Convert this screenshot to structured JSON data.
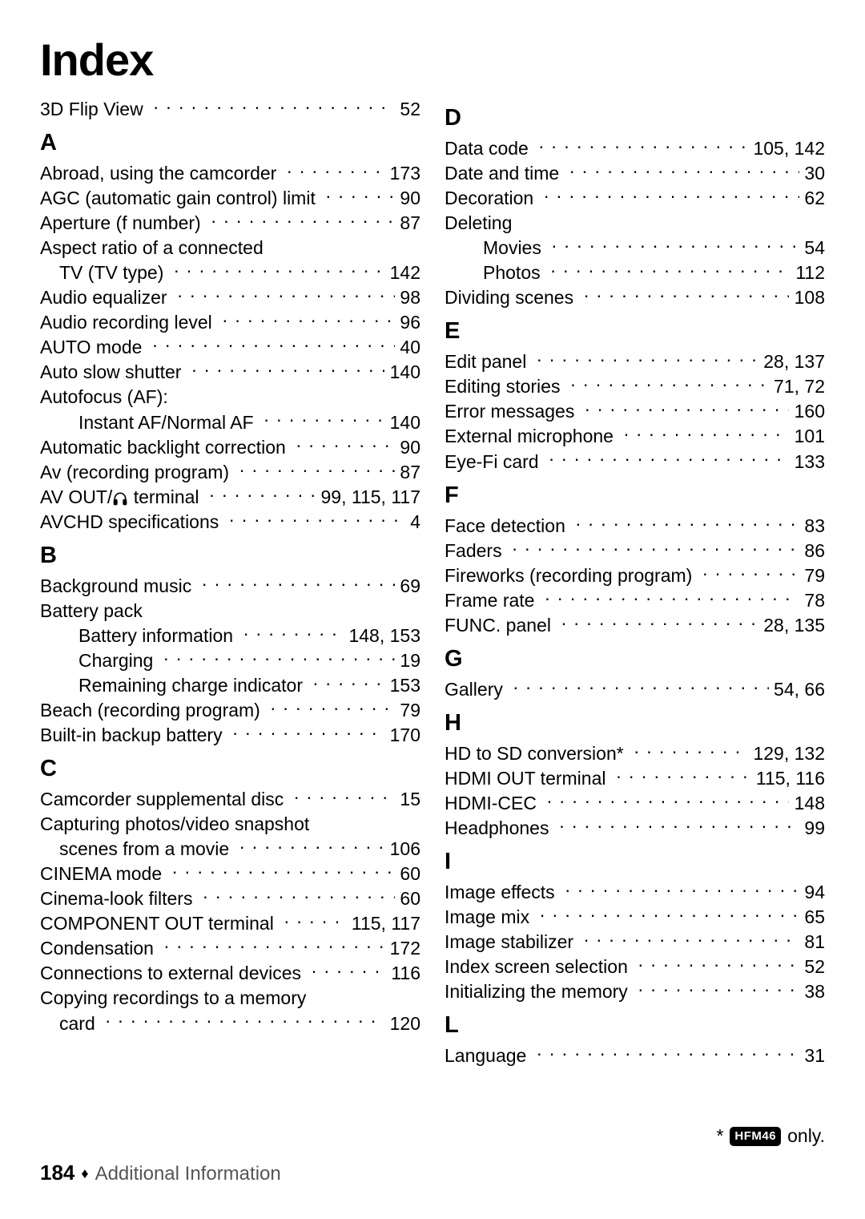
{
  "title": "Index",
  "footer": {
    "page_num": "184",
    "section": "Additional Information",
    "diamond": "♦"
  },
  "footnote": {
    "star": "*",
    "badge": "HFM46",
    "suffix": " only."
  },
  "pre_entries": [
    {
      "label": "3D Flip View",
      "page": "52"
    }
  ],
  "left": [
    {
      "letter": "A",
      "entries": [
        {
          "label": "Abroad, using the camcorder",
          "page": "173"
        },
        {
          "label": "AGC (automatic gain control) limit",
          "page": "90"
        },
        {
          "label": "Aperture (f number)",
          "page": "87"
        },
        {
          "label": "Aspect ratio of a connected",
          "nopage": true
        },
        {
          "label": "TV (TV type)",
          "page": "142",
          "indent": 1
        },
        {
          "label": "Audio equalizer",
          "page": "98"
        },
        {
          "label": "Audio recording level",
          "page": "96"
        },
        {
          "label": "AUTO mode",
          "page": "40"
        },
        {
          "label": "Auto slow shutter",
          "page": "140"
        },
        {
          "label": "Autofocus (AF):",
          "nopage": true
        },
        {
          "label": "Instant AF/Normal AF",
          "page": "140",
          "indent": 2
        },
        {
          "label": "Automatic backlight correction",
          "page": "90"
        },
        {
          "label": "Av (recording program)",
          "page": "87"
        },
        {
          "label": "AV OUT/__HP__ terminal",
          "page": "99, 115, 117"
        },
        {
          "label": "AVCHD specifications",
          "page": "4"
        }
      ]
    },
    {
      "letter": "B",
      "entries": [
        {
          "label": "Background music",
          "page": "69"
        },
        {
          "label": "Battery pack",
          "nopage": true
        },
        {
          "label": "Battery information",
          "page": "148, 153",
          "indent": 2
        },
        {
          "label": "Charging",
          "page": "19",
          "indent": 2
        },
        {
          "label": "Remaining charge indicator",
          "page": "153",
          "indent": 2
        },
        {
          "label": "Beach (recording program)",
          "page": "79"
        },
        {
          "label": "Built-in backup battery",
          "page": "170"
        }
      ]
    },
    {
      "letter": "C",
      "entries": [
        {
          "label": "Camcorder supplemental disc",
          "page": "15"
        },
        {
          "label": "Capturing photos/video snapshot",
          "nopage": true
        },
        {
          "label": "scenes from a movie",
          "page": "106",
          "indent": 1
        },
        {
          "label": "CINEMA mode",
          "page": "60"
        },
        {
          "label": "Cinema-look filters",
          "page": "60"
        },
        {
          "label": "COMPONENT OUT terminal",
          "page": "115, 117",
          "nodots_short": true
        },
        {
          "label": "Condensation",
          "page": "172"
        },
        {
          "label": "Connections to external devices",
          "page": "116"
        },
        {
          "label": "Copying recordings to a memory",
          "nopage": true
        },
        {
          "label": "card",
          "page": "120",
          "indent": 1
        }
      ]
    }
  ],
  "right": [
    {
      "letter": "D",
      "entries": [
        {
          "label": "Data code",
          "page": "105, 142"
        },
        {
          "label": "Date and time",
          "page": "30"
        },
        {
          "label": "Decoration",
          "page": "62"
        },
        {
          "label": "Deleting",
          "nopage": true
        },
        {
          "label": "Movies",
          "page": "54",
          "indent": 2
        },
        {
          "label": "Photos",
          "page": "112",
          "indent": 2
        },
        {
          "label": "Dividing scenes",
          "page": "108"
        }
      ]
    },
    {
      "letter": "E",
      "entries": [
        {
          "label": "Edit panel",
          "page": "28, 137"
        },
        {
          "label": "Editing stories",
          "page": "71, 72"
        },
        {
          "label": "Error messages",
          "page": "160"
        },
        {
          "label": "External microphone",
          "page": "101"
        },
        {
          "label": "Eye-Fi card",
          "page": "133"
        }
      ]
    },
    {
      "letter": "F",
      "entries": [
        {
          "label": "Face detection",
          "page": "83"
        },
        {
          "label": "Faders",
          "page": "86"
        },
        {
          "label": "Fireworks (recording program)",
          "page": "79"
        },
        {
          "label": "Frame rate",
          "page": "78"
        },
        {
          "label": "FUNC. panel",
          "page": "28, 135"
        }
      ]
    },
    {
      "letter": "G",
      "entries": [
        {
          "label": "Gallery",
          "page": "54, 66"
        }
      ]
    },
    {
      "letter": "H",
      "entries": [
        {
          "label": "HD to SD conversion*",
          "page": "129, 132"
        },
        {
          "label": "HDMI OUT terminal",
          "page": "115, 116"
        },
        {
          "label": "HDMI-CEC",
          "page": "148"
        },
        {
          "label": "Headphones",
          "page": "99"
        }
      ]
    },
    {
      "letter": "I",
      "entries": [
        {
          "label": "Image effects",
          "page": "94"
        },
        {
          "label": "Image mix",
          "page": "65"
        },
        {
          "label": "Image stabilizer",
          "page": "81"
        },
        {
          "label": "Index screen selection",
          "page": "52"
        },
        {
          "label": "Initializing the memory",
          "page": "38"
        }
      ]
    },
    {
      "letter": "L",
      "entries": [
        {
          "label": "Language",
          "page": "31"
        }
      ]
    }
  ]
}
